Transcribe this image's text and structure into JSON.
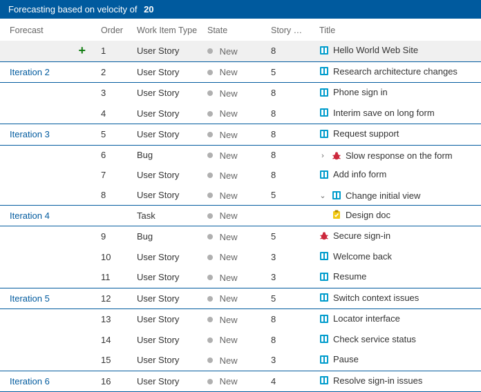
{
  "banner": {
    "prefix": "Forecasting based on velocity of",
    "value": "20"
  },
  "columns": {
    "forecast": "Forecast",
    "order": "Order",
    "type": "Work Item Type",
    "state": "State",
    "story": "Story …",
    "title": "Title"
  },
  "colors": {
    "banner_bg": "#005a9e",
    "iteration_text": "#005a9e",
    "separator": "#005a9e",
    "state_dot": "#b0b0b0",
    "highlight_bg": "#f0f0f0",
    "plus": "#107c10",
    "bug": "#cc293d",
    "story": "#009ccc",
    "task": "#f2c811"
  },
  "rows": [
    {
      "forecast": "",
      "plus": true,
      "order": "1",
      "type": "User Story",
      "state": "New",
      "story": "8",
      "icon": "story",
      "title": "Hello World Web Site",
      "highlight": true
    },
    {
      "sep": true
    },
    {
      "forecast": "Iteration 2",
      "order": "2",
      "type": "User Story",
      "state": "New",
      "story": "5",
      "icon": "story",
      "title": "Research architecture changes"
    },
    {
      "sep": true
    },
    {
      "forecast": "",
      "order": "3",
      "type": "User Story",
      "state": "New",
      "story": "8",
      "icon": "story",
      "title": "Phone sign in"
    },
    {
      "forecast": "",
      "order": "4",
      "type": "User Story",
      "state": "New",
      "story": "8",
      "icon": "story",
      "title": "Interim save on long form"
    },
    {
      "sep": true
    },
    {
      "forecast": "Iteration 3",
      "order": "5",
      "type": "User Story",
      "state": "New",
      "story": "8",
      "icon": "story",
      "title": "Request support"
    },
    {
      "sep": true
    },
    {
      "forecast": "",
      "order": "6",
      "type": "Bug",
      "state": "New",
      "story": "8",
      "icon": "bug",
      "title": "Slow response on the form",
      "expander": "right"
    },
    {
      "forecast": "",
      "order": "7",
      "type": "User Story",
      "state": "New",
      "story": "8",
      "icon": "story",
      "title": "Add info form"
    },
    {
      "forecast": "",
      "order": "8",
      "type": "User Story",
      "state": "New",
      "story": "5",
      "icon": "story",
      "title": "Change initial view",
      "expander": "down"
    },
    {
      "sep": true
    },
    {
      "forecast": "Iteration 4",
      "order": "",
      "type": "Task",
      "state": "New",
      "story": "",
      "icon": "task",
      "title": "Design doc",
      "indent": 1
    },
    {
      "sep": true
    },
    {
      "forecast": "",
      "order": "9",
      "type": "Bug",
      "state": "New",
      "story": "5",
      "icon": "bug",
      "title": "Secure sign-in"
    },
    {
      "forecast": "",
      "order": "10",
      "type": "User Story",
      "state": "New",
      "story": "3",
      "icon": "story",
      "title": "Welcome back"
    },
    {
      "forecast": "",
      "order": "11",
      "type": "User Story",
      "state": "New",
      "story": "3",
      "icon": "story",
      "title": "Resume"
    },
    {
      "sep": true
    },
    {
      "forecast": "Iteration 5",
      "order": "12",
      "type": "User Story",
      "state": "New",
      "story": "5",
      "icon": "story",
      "title": "Switch context issues"
    },
    {
      "sep": true
    },
    {
      "forecast": "",
      "order": "13",
      "type": "User Story",
      "state": "New",
      "story": "8",
      "icon": "story",
      "title": "Locator interface"
    },
    {
      "forecast": "",
      "order": "14",
      "type": "User Story",
      "state": "New",
      "story": "8",
      "icon": "story",
      "title": "Check service status"
    },
    {
      "forecast": "",
      "order": "15",
      "type": "User Story",
      "state": "New",
      "story": "3",
      "icon": "story",
      "title": "Pause"
    },
    {
      "sep": true
    },
    {
      "forecast": "Iteration 6",
      "order": "16",
      "type": "User Story",
      "state": "New",
      "story": "4",
      "icon": "story",
      "title": "Resolve sign-in issues"
    },
    {
      "sep": true
    }
  ]
}
